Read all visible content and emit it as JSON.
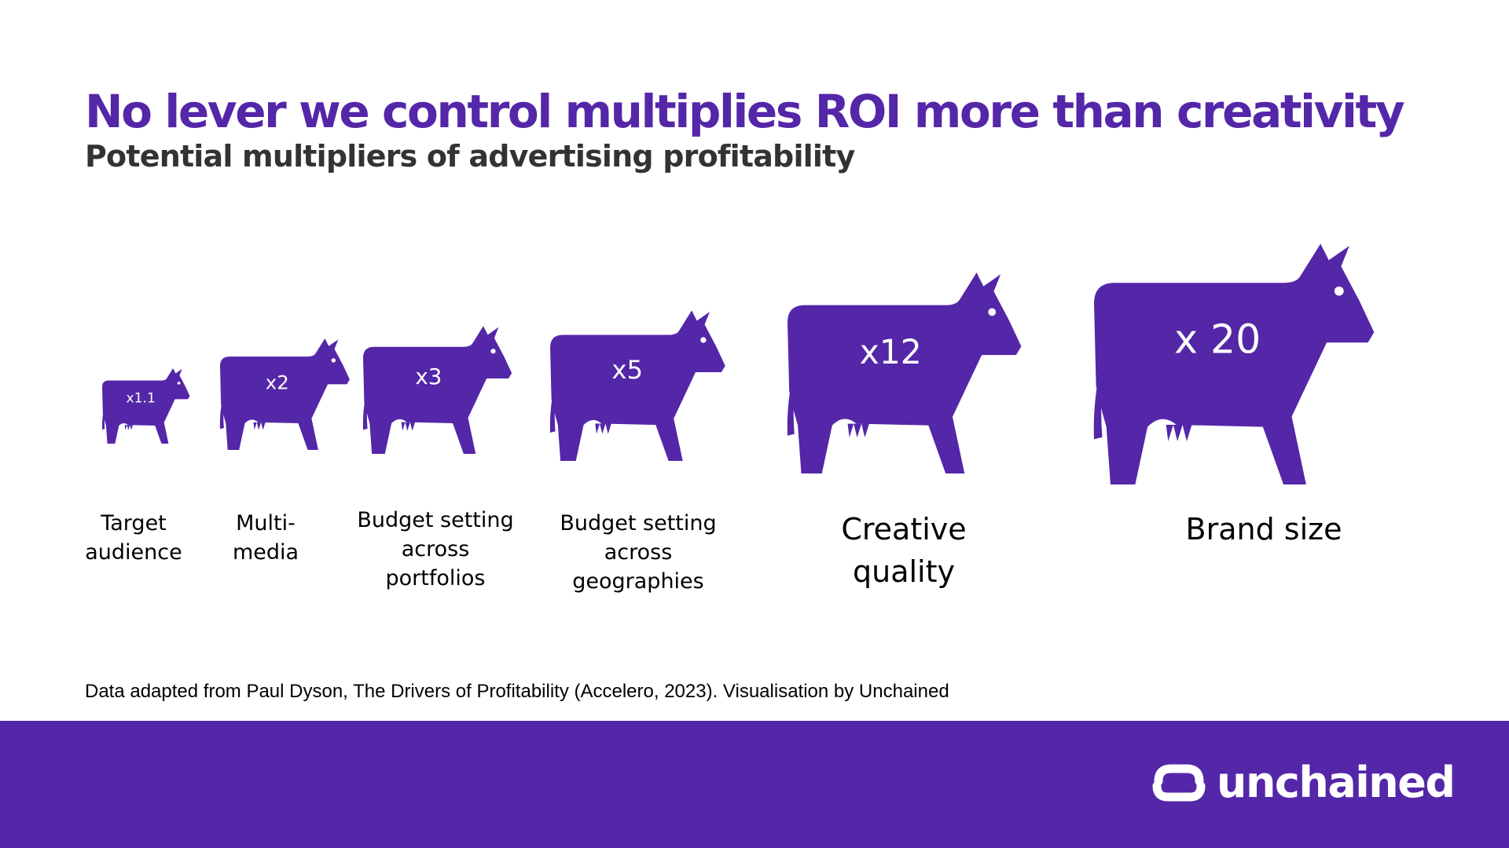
{
  "title": "No lever we control multiplies ROI more than creativity",
  "subtitle": "Potential multipliers of advertising profitability",
  "source": "Data adapted from Paul Dyson, The Drivers of Profitability (Accelero, 2023). Visualisation by Unchained",
  "brand": {
    "name": "unchained",
    "color": "#5426a8"
  },
  "chart_data": {
    "type": "bar",
    "title": "Potential multipliers of advertising profitability",
    "mark": "cow pictogram scaled by multiplier",
    "categories": [
      "Target audience",
      "Multi-media",
      "Budget setting across portfolios",
      "Budget setting across geographies",
      "Creative quality",
      "Brand size"
    ],
    "label_lines": [
      [
        "Target",
        "audience"
      ],
      [
        "Multi-",
        "media"
      ],
      [
        "Budget setting",
        "across",
        "portfolios"
      ],
      [
        "Budget setting",
        "across",
        "geographies"
      ],
      [
        "Creative",
        "quality"
      ],
      [
        "Brand size"
      ]
    ],
    "value_labels": [
      "x1.1",
      "x2",
      "x3",
      "x5",
      "x12",
      "x 20"
    ],
    "values": [
      1.1,
      2,
      3,
      5,
      12,
      20
    ],
    "color": "#5426a8"
  }
}
